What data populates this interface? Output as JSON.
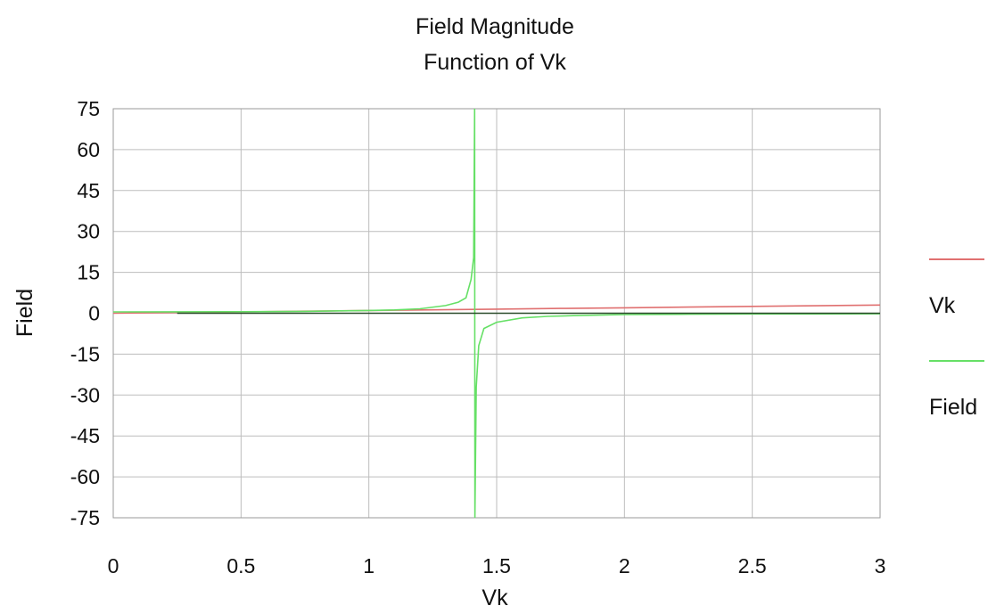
{
  "chart_data": {
    "type": "line",
    "title": "Field Magnitude",
    "subtitle": "Function of Vk",
    "xlabel": "Vk",
    "ylabel": "Field",
    "xlim": [
      0,
      3
    ],
    "ylim": [
      -75,
      75
    ],
    "x_ticks": [
      0,
      0.5,
      1,
      1.5,
      2,
      2.5,
      3
    ],
    "x_tick_labels": [
      "0",
      "0.5",
      "1",
      "1.5",
      "2",
      "2.5",
      "3"
    ],
    "y_ticks": [
      75,
      60,
      45,
      30,
      15,
      0,
      -15,
      -30,
      -45,
      -60,
      -75
    ],
    "y_tick_labels": [
      "75",
      "60",
      "45",
      "30",
      "15",
      "0",
      "-15",
      "-30",
      "-45",
      "-60",
      "-75"
    ],
    "grid": true,
    "legend_position": "right",
    "series": [
      {
        "name": "Vk",
        "color": "#e07070",
        "x": [
          0,
          0.25,
          0.5,
          0.75,
          1,
          1.25,
          1.5,
          1.75,
          2,
          2.25,
          2.5,
          2.75,
          3
        ],
        "y": [
          0,
          0.25,
          0.5,
          0.75,
          1,
          1.25,
          1.5,
          1.75,
          2,
          2.25,
          2.5,
          2.75,
          3
        ]
      },
      {
        "name": "Field",
        "color": "#66e066",
        "x": [
          0,
          0.25,
          0.5,
          0.75,
          1,
          1.1,
          1.2,
          1.3,
          1.35,
          1.38,
          1.4,
          1.41,
          1.414,
          1.415,
          1.42,
          1.43,
          1.45,
          1.5,
          1.6,
          1.7,
          1.8,
          2,
          2.25,
          2.5,
          2.75,
          3
        ],
        "y": [
          0.5,
          0.52,
          0.57,
          0.68,
          1,
          1.22,
          1.64,
          2.82,
          4.04,
          5.66,
          12.4,
          20.4,
          75,
          -75,
          -27.1,
          -11.9,
          -5.6,
          -3.3,
          -1.7,
          -1.16,
          -0.89,
          -0.5,
          -0.37,
          -0.26,
          -0.25,
          -0.2
        ]
      },
      {
        "name": "",
        "color": "#2a4a2a",
        "x": [
          0.25,
          0.75,
          1.5,
          2.25,
          3
        ],
        "y": [
          0,
          0,
          0,
          0,
          0
        ]
      }
    ]
  }
}
